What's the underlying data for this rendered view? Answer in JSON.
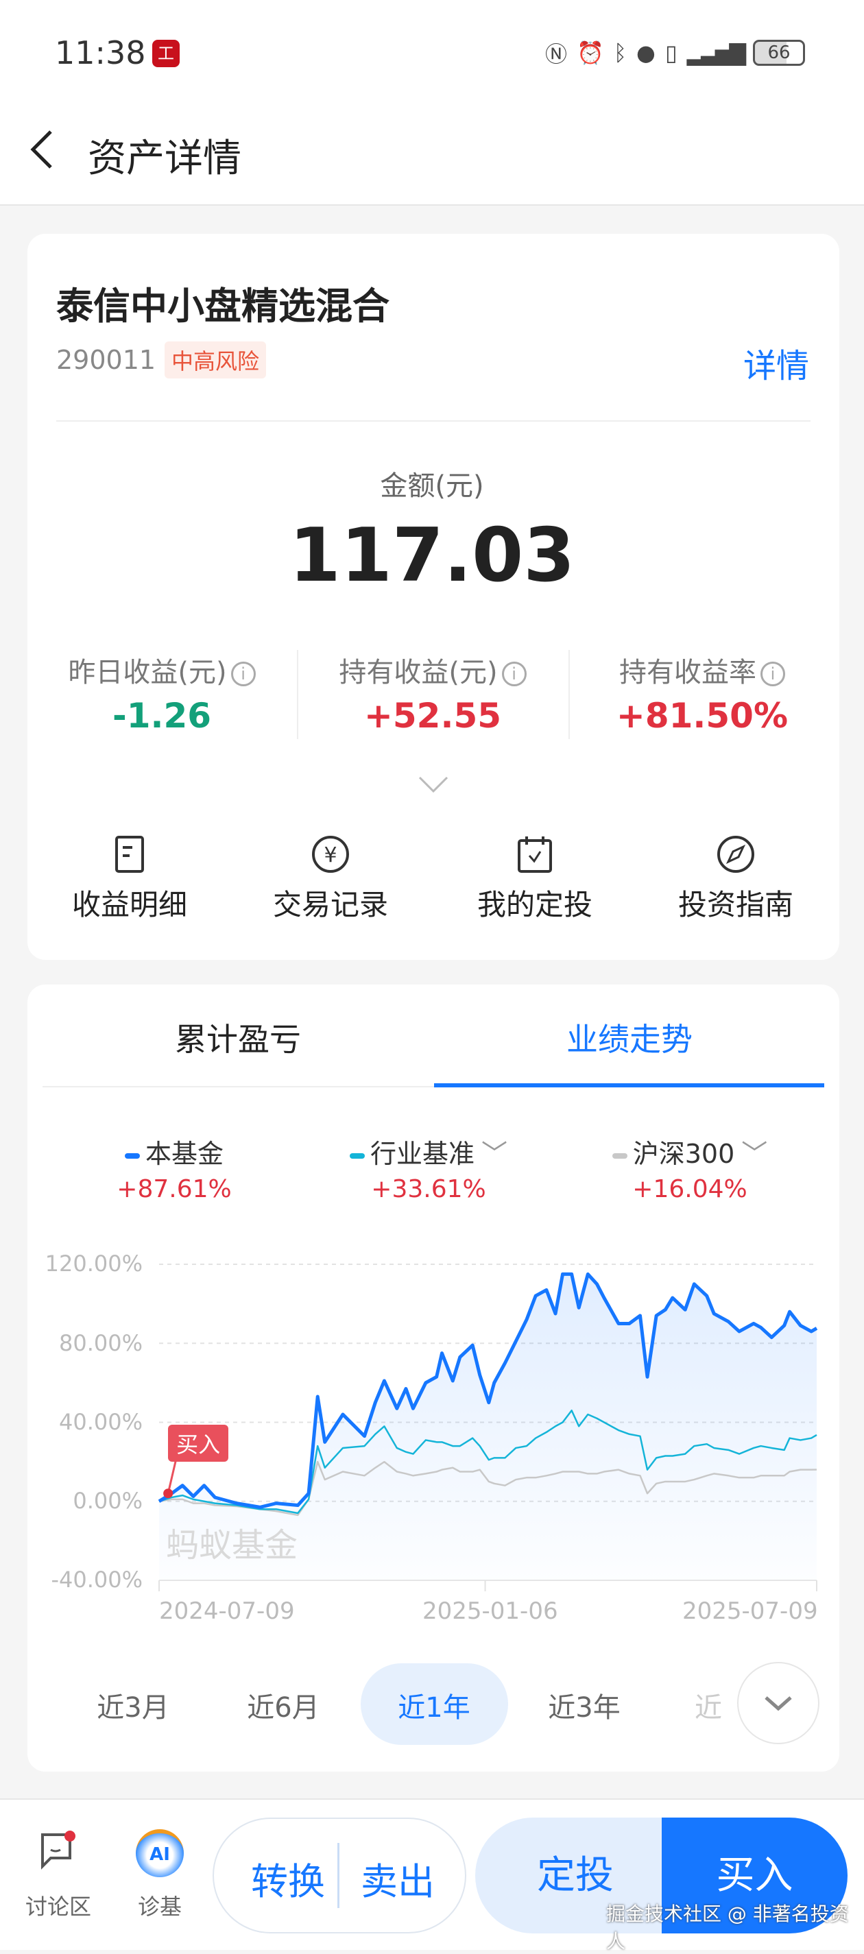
{
  "status_bar": {
    "time": "11:38",
    "app_badge": "工",
    "battery": "66"
  },
  "header": {
    "title": "资产详情"
  },
  "fund": {
    "name": "泰信中小盘精选混合",
    "code": "290011",
    "risk": "中高风险",
    "detail_link": "详情",
    "amount_label": "金额(元)",
    "amount": "117.03",
    "stats": [
      {
        "label": "昨日收益(元)",
        "value": "-1.26",
        "color": "#13a07a"
      },
      {
        "label": "持有收益(元)",
        "value": "+52.55",
        "color": "#e0313f"
      },
      {
        "label": "持有收益率",
        "value": "+81.50%",
        "color": "#e0313f"
      }
    ]
  },
  "actions": [
    {
      "label": "收益明细",
      "icon": "document-icon"
    },
    {
      "label": "交易记录",
      "icon": "yen-circle-icon"
    },
    {
      "label": "我的定投",
      "icon": "calendar-check-icon"
    },
    {
      "label": "投资指南",
      "icon": "compass-icon"
    }
  ],
  "tabs": [
    {
      "label": "累计盈亏",
      "active": false
    },
    {
      "label": "业绩走势",
      "active": true
    }
  ],
  "legend": [
    {
      "name": "本基金",
      "value": "+87.61%",
      "color": "#1677ff"
    },
    {
      "name": "行业基准",
      "value": "+33.61%",
      "color": "#14b4d8"
    },
    {
      "name": "沪深300",
      "value": "+16.04%",
      "color": "#c8c8c8"
    }
  ],
  "chart_data": {
    "type": "line",
    "ylim": [
      -40,
      120
    ],
    "yticks": [
      "120.00%",
      "80.00%",
      "40.00%",
      "0.00%",
      "-40.00%"
    ],
    "ytick_values": [
      120,
      80,
      40,
      0,
      -40
    ],
    "xticks": [
      "2024-07-09",
      "2025-01-06",
      "2025-07-09"
    ],
    "x_range": [
      "2024-07-09",
      "2025-07-09"
    ],
    "grid": true,
    "buy_marker": {
      "label": "买入",
      "date": "2024-07-14",
      "value": 4
    },
    "watermark": "蚂蚁基金",
    "x": [
      "2024-07-09",
      "2024-07-16",
      "2024-07-22",
      "2024-07-28",
      "2024-08-03",
      "2024-08-09",
      "2024-08-21",
      "2024-09-03",
      "2024-09-12",
      "2024-09-24",
      "2024-09-30",
      "2024-10-05",
      "2024-10-09",
      "2024-10-19",
      "2024-10-31",
      "2024-11-06",
      "2024-11-11",
      "2024-11-18",
      "2024-11-23",
      "2024-11-27",
      "2024-12-04",
      "2024-12-10",
      "2024-12-13",
      "2024-12-19",
      "2024-12-23",
      "2024-12-30",
      "2025-01-03",
      "2025-01-08",
      "2025-01-11",
      "2025-01-17",
      "2025-01-23",
      "2025-01-29",
      "2025-02-03",
      "2025-02-09",
      "2025-02-14",
      "2025-02-18",
      "2025-02-23",
      "2025-02-27",
      "2025-03-04",
      "2025-03-09",
      "2025-03-13",
      "2025-03-21",
      "2025-03-27",
      "2025-04-02",
      "2025-04-06",
      "2025-04-11",
      "2025-04-16",
      "2025-04-20",
      "2025-04-27",
      "2025-05-02",
      "2025-05-09",
      "2025-05-13",
      "2025-05-21",
      "2025-05-27",
      "2025-06-04",
      "2025-06-08",
      "2025-06-14",
      "2025-06-21",
      "2025-06-24",
      "2025-06-30",
      "2025-07-06",
      "2025-07-09"
    ],
    "series": [
      {
        "name": "本基金",
        "color": "#1677ff",
        "values": [
          0,
          4,
          8,
          2.5,
          8,
          2,
          -1,
          -3,
          -1,
          -2,
          4,
          53,
          30,
          44,
          33,
          50,
          61,
          47,
          57,
          47,
          60,
          63,
          75,
          61,
          73,
          79,
          64,
          50,
          60,
          70,
          81,
          92,
          104,
          107,
          95,
          115,
          115,
          98,
          115,
          110,
          103,
          90,
          90,
          94,
          63,
          94,
          97,
          103,
          97,
          110,
          104,
          95,
          91,
          86,
          90,
          88,
          83,
          89,
          96,
          89,
          86,
          87.61
        ]
      },
      {
        "name": "行业基准",
        "color": "#14b4d8",
        "values": [
          0,
          2,
          3,
          1,
          0,
          -1,
          -2,
          -4,
          -4,
          -6,
          1,
          28,
          17,
          27,
          28,
          34,
          38,
          27,
          25,
          24,
          31,
          30,
          30,
          28,
          28,
          32,
          28,
          21,
          22,
          22,
          27,
          28,
          32,
          35,
          38,
          40,
          46,
          38,
          44,
          42,
          40,
          36,
          34,
          33,
          16,
          22,
          23,
          23,
          24,
          28,
          29,
          27,
          26,
          24,
          27,
          28,
          27,
          26,
          32,
          31,
          32,
          33.61
        ]
      },
      {
        "name": "沪深300",
        "color": "#c8c8c8",
        "values": [
          0,
          1,
          1,
          -1,
          -1,
          -2,
          -2.5,
          -4,
          -5,
          -7,
          1,
          20,
          11,
          15,
          13,
          17,
          20,
          15,
          14,
          13,
          14,
          15,
          16,
          17,
          15,
          15,
          16,
          10,
          9,
          8,
          11,
          12,
          12,
          13,
          14,
          15,
          15,
          15,
          14,
          14,
          15,
          16,
          14,
          13,
          4,
          9,
          10,
          10,
          10,
          11,
          13,
          14,
          13,
          12,
          12,
          13,
          13,
          13,
          15,
          16,
          16,
          16.04
        ]
      }
    ]
  },
  "periods": [
    {
      "label": "近3月"
    },
    {
      "label": "近6月"
    },
    {
      "label": "近1年",
      "active": true
    },
    {
      "label": "近3年"
    },
    {
      "label": "近"
    }
  ],
  "bottom": {
    "discuss": "讨论区",
    "diagnose": "诊基",
    "ai_badge": "AI",
    "convert": "转换",
    "sell": "卖出",
    "sip": "定投",
    "buy": "买入",
    "watermark": "掘金技术社区 @ 非著名投资人"
  }
}
